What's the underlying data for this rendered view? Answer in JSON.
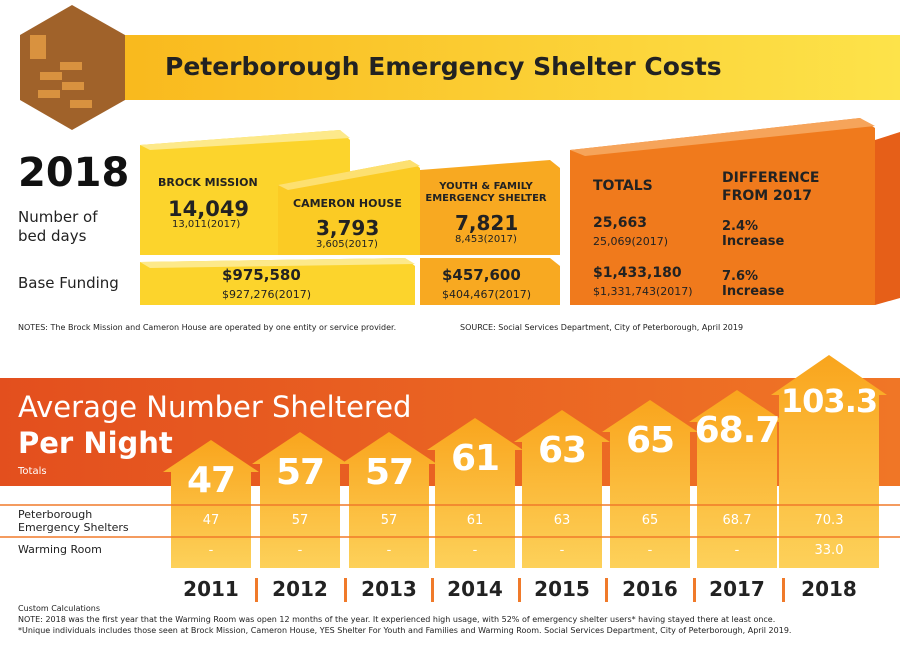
{
  "header": {
    "title": "Peterborough Emergency Shelter Costs"
  },
  "costs": {
    "year": "2018",
    "row_labels": [
      "Number of bed days",
      "Base Funding"
    ],
    "brock": {
      "name": "BROCK MISSION",
      "beds": "14,049",
      "beds_prev": "13,011(2017)"
    },
    "cameron": {
      "name": "CAMERON HOUSE",
      "beds": "3,793",
      "beds_prev": "3,605(2017)"
    },
    "combined_funding": {
      "value": "$975,580",
      "prev": "$927,276(2017)"
    },
    "youth": {
      "name": "YOUTH & FAMILY EMERGENCY SHELTER",
      "beds": "7,821",
      "beds_prev": "8,453(2017)",
      "funding": "$457,600",
      "funding_prev": "$404,467(2017)"
    },
    "totals": {
      "name": "TOTALS",
      "beds": "25,663",
      "beds_prev": "25,069(2017)",
      "funding": "$1,433,180",
      "funding_prev": "$1,331,743(2017)"
    },
    "difference": {
      "name": "DIFFERENCE FROM 2017",
      "beds": "2.4%",
      "beds_word": "Increase",
      "funding": "7.6%",
      "funding_word": "Increase"
    },
    "notes": "NOTES: The Brock Mission and Cameron House are operated by one entity or service provider.",
    "source": "SOURCE: Social Services Department, City of Peterborough, April 2019"
  },
  "sheltered": {
    "title": "Average Number Sheltered",
    "subtitle": "Per Night",
    "row_labels": [
      "Totals",
      "Peterborough Emergency Shelters",
      "Warming Room"
    ],
    "years": [
      {
        "year": "2011",
        "total": "47",
        "shelters": "47",
        "warming": "-"
      },
      {
        "year": "2012",
        "total": "57",
        "shelters": "57",
        "warming": "-"
      },
      {
        "year": "2013",
        "total": "57",
        "shelters": "57",
        "warming": "-"
      },
      {
        "year": "2014",
        "total": "61",
        "shelters": "61",
        "warming": "-"
      },
      {
        "year": "2015",
        "total": "63",
        "shelters": "63",
        "warming": "-"
      },
      {
        "year": "2016",
        "total": "65",
        "shelters": "65",
        "warming": "-"
      },
      {
        "year": "2017",
        "total": "68.7",
        "shelters": "68.7",
        "warming": "-"
      },
      {
        "year": "2018",
        "total": "103.3",
        "shelters": "70.3",
        "warming": "33.0"
      }
    ]
  },
  "footer": [
    "Custom Calculations",
    "NOTE: 2018 was the first year that the Warming Room was open 12 months of the year. It experienced high usage, with 52% of emergency shelter users* having stayed there at least once.",
    "*Unique individuals includes those seen at Brock Mission, Cameron House, YES Shelter For Youth and Families and Warming Room.  Social Services Department, City of Peterborough, April 2019."
  ]
}
